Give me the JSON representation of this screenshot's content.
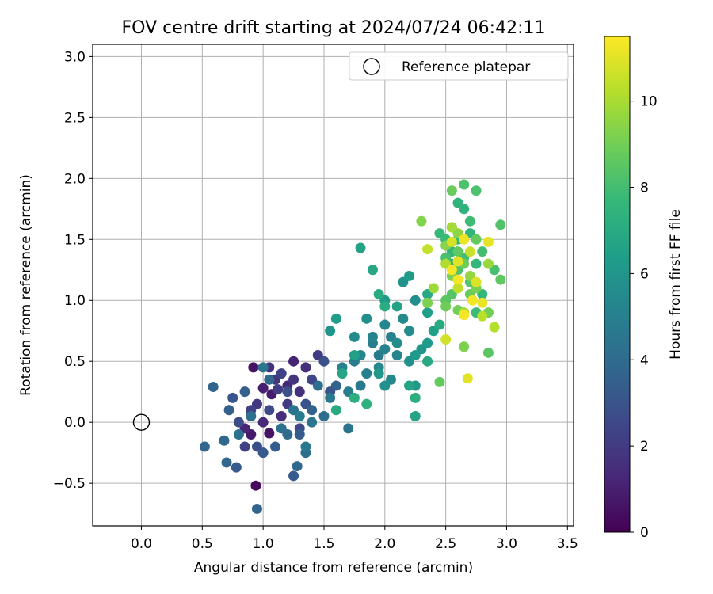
{
  "chart_data": {
    "type": "scatter",
    "title": "FOV centre drift starting at 2024/07/24 06:42:11",
    "xlabel": "Angular distance from reference (arcmin)",
    "ylabel": "Rotation from reference (arcmin)",
    "xlim": [
      -0.4,
      3.55
    ],
    "ylim": [
      -0.85,
      3.1
    ],
    "x_ticks": [
      0.0,
      0.5,
      1.0,
      1.5,
      2.0,
      2.5,
      3.0,
      3.5
    ],
    "x_tick_labels": [
      "0.0",
      "0.5",
      "1.0",
      "1.5",
      "2.0",
      "2.5",
      "3.0",
      "3.5"
    ],
    "y_ticks": [
      -0.5,
      0.0,
      0.5,
      1.0,
      1.5,
      2.0,
      2.5,
      3.0
    ],
    "y_tick_labels": [
      "−0.5",
      "0.0",
      "0.5",
      "1.0",
      "1.5",
      "2.0",
      "2.5",
      "3.0"
    ],
    "grid": true,
    "legend": {
      "placement": "top-right",
      "entries": [
        {
          "label": "Reference platepar",
          "marker": "open-circle"
        }
      ]
    },
    "reference_point": {
      "x": 0.0,
      "y": 0.0
    },
    "colorbar": {
      "label": "Hours from first FF file",
      "colormap": "viridis",
      "range": [
        0,
        11.5
      ],
      "ticks": [
        0,
        2,
        4,
        6,
        8,
        10
      ],
      "tick_labels": [
        "0",
        "2",
        "4",
        "6",
        "8",
        "10"
      ]
    },
    "colors": {
      "viridis": [
        "#440154",
        "#482878",
        "#3e4989",
        "#31688e",
        "#26828e",
        "#1f9e89",
        "#35b779",
        "#6ece58",
        "#b5de2b",
        "#fde725"
      ]
    },
    "points": [
      {
        "x": 0.94,
        "y": -0.52,
        "c": 0.3
      },
      {
        "x": 0.92,
        "y": 0.45,
        "c": 0.6
      },
      {
        "x": 1.05,
        "y": -0.09,
        "c": 0.6
      },
      {
        "x": 0.9,
        "y": -0.1,
        "c": 0.8
      },
      {
        "x": 1.0,
        "y": 0.28,
        "c": 1.0
      },
      {
        "x": 1.07,
        "y": 0.23,
        "c": 0.9
      },
      {
        "x": 0.85,
        "y": -0.05,
        "c": 1.2
      },
      {
        "x": 1.25,
        "y": 0.5,
        "c": 1.1
      },
      {
        "x": 1.2,
        "y": 0.3,
        "c": 1.3
      },
      {
        "x": 1.0,
        "y": 0.0,
        "c": 1.4
      },
      {
        "x": 1.15,
        "y": 0.05,
        "c": 1.5
      },
      {
        "x": 1.35,
        "y": 0.45,
        "c": 1.5
      },
      {
        "x": 1.05,
        "y": 0.45,
        "c": 1.7
      },
      {
        "x": 1.1,
        "y": 0.35,
        "c": 1.8
      },
      {
        "x": 1.25,
        "y": 0.35,
        "c": 1.8
      },
      {
        "x": 1.3,
        "y": 0.25,
        "c": 1.6
      },
      {
        "x": 0.95,
        "y": 0.15,
        "c": 1.9
      },
      {
        "x": 1.45,
        "y": 0.55,
        "c": 2.0
      },
      {
        "x": 1.2,
        "y": 0.15,
        "c": 2.0
      },
      {
        "x": 1.12,
        "y": 0.27,
        "c": 2.1
      },
      {
        "x": 0.9,
        "y": 0.1,
        "c": 2.2
      },
      {
        "x": 0.85,
        "y": -0.2,
        "c": 2.3
      },
      {
        "x": 1.15,
        "y": 0.4,
        "c": 2.3
      },
      {
        "x": 1.4,
        "y": 0.35,
        "c": 2.4
      },
      {
        "x": 1.3,
        "y": -0.05,
        "c": 2.5
      },
      {
        "x": 1.05,
        "y": 0.1,
        "c": 2.6
      },
      {
        "x": 0.8,
        "y": 0.0,
        "c": 2.7
      },
      {
        "x": 0.95,
        "y": -0.2,
        "c": 2.8
      },
      {
        "x": 1.2,
        "y": 0.25,
        "c": 2.8
      },
      {
        "x": 1.35,
        "y": 0.15,
        "c": 2.9
      },
      {
        "x": 1.5,
        "y": 0.5,
        "c": 2.9
      },
      {
        "x": 1.55,
        "y": 0.25,
        "c": 3.0
      },
      {
        "x": 0.75,
        "y": 0.2,
        "c": 3.1
      },
      {
        "x": 0.78,
        "y": -0.37,
        "c": 3.2
      },
      {
        "x": 1.0,
        "y": -0.25,
        "c": 3.2
      },
      {
        "x": 1.25,
        "y": -0.44,
        "c": 3.3
      },
      {
        "x": 1.3,
        "y": -0.1,
        "c": 3.4
      },
      {
        "x": 1.1,
        "y": -0.2,
        "c": 3.4
      },
      {
        "x": 0.72,
        "y": 0.1,
        "c": 3.5
      },
      {
        "x": 0.85,
        "y": 0.25,
        "c": 3.5
      },
      {
        "x": 1.4,
        "y": 0.1,
        "c": 3.6
      },
      {
        "x": 1.6,
        "y": 0.3,
        "c": 3.6
      },
      {
        "x": 0.95,
        "y": -0.71,
        "c": 3.7
      },
      {
        "x": 0.7,
        "y": -0.33,
        "c": 3.8
      },
      {
        "x": 0.52,
        "y": -0.2,
        "c": 3.8
      },
      {
        "x": 0.59,
        "y": 0.29,
        "c": 3.7
      },
      {
        "x": 0.68,
        "y": -0.15,
        "c": 3.9
      },
      {
        "x": 1.28,
        "y": -0.36,
        "c": 3.9
      },
      {
        "x": 1.05,
        "y": 0.35,
        "c": 4.0
      },
      {
        "x": 1.2,
        "y": -0.1,
        "c": 4.0
      },
      {
        "x": 1.35,
        "y": -0.25,
        "c": 4.1
      },
      {
        "x": 1.5,
        "y": 0.05,
        "c": 4.1
      },
      {
        "x": 1.45,
        "y": 0.3,
        "c": 4.2
      },
      {
        "x": 0.9,
        "y": 0.05,
        "c": 4.2
      },
      {
        "x": 0.8,
        "y": -0.1,
        "c": 4.3
      },
      {
        "x": 1.15,
        "y": -0.05,
        "c": 4.3
      },
      {
        "x": 1.7,
        "y": -0.05,
        "c": 4.4
      },
      {
        "x": 1.25,
        "y": 0.1,
        "c": 4.4
      },
      {
        "x": 1.0,
        "y": 0.45,
        "c": 4.5
      },
      {
        "x": 1.4,
        "y": 0.0,
        "c": 4.5
      },
      {
        "x": 1.35,
        "y": -0.2,
        "c": 4.6
      },
      {
        "x": 1.55,
        "y": 0.2,
        "c": 4.6
      },
      {
        "x": 1.8,
        "y": 0.3,
        "c": 4.7
      },
      {
        "x": 1.95,
        "y": 0.55,
        "c": 4.7
      },
      {
        "x": 1.3,
        "y": 0.05,
        "c": 4.8
      },
      {
        "x": 1.75,
        "y": 0.5,
        "c": 4.8
      },
      {
        "x": 1.9,
        "y": 0.65,
        "c": 4.9
      },
      {
        "x": 1.7,
        "y": 0.25,
        "c": 4.9
      },
      {
        "x": 2.05,
        "y": 0.7,
        "c": 5.0
      },
      {
        "x": 1.85,
        "y": 0.4,
        "c": 5.0
      },
      {
        "x": 2.0,
        "y": 0.6,
        "c": 5.1
      },
      {
        "x": 1.65,
        "y": 0.45,
        "c": 5.1
      },
      {
        "x": 1.9,
        "y": 0.7,
        "c": 5.2
      },
      {
        "x": 2.1,
        "y": 0.55,
        "c": 5.2
      },
      {
        "x": 1.8,
        "y": 0.55,
        "c": 5.3
      },
      {
        "x": 2.0,
        "y": 0.8,
        "c": 5.3
      },
      {
        "x": 1.95,
        "y": 0.45,
        "c": 5.4
      },
      {
        "x": 2.05,
        "y": 0.35,
        "c": 5.4
      },
      {
        "x": 1.75,
        "y": 0.7,
        "c": 5.5
      },
      {
        "x": 2.15,
        "y": 0.85,
        "c": 5.5
      },
      {
        "x": 2.1,
        "y": 0.65,
        "c": 5.6
      },
      {
        "x": 2.2,
        "y": 0.75,
        "c": 5.6
      },
      {
        "x": 1.85,
        "y": 0.85,
        "c": 5.7
      },
      {
        "x": 2.25,
        "y": 1.0,
        "c": 5.7
      },
      {
        "x": 2.0,
        "y": 0.3,
        "c": 5.8
      },
      {
        "x": 2.2,
        "y": 0.5,
        "c": 5.8
      },
      {
        "x": 2.15,
        "y": 1.15,
        "c": 5.9
      },
      {
        "x": 2.3,
        "y": 0.6,
        "c": 6.0
      },
      {
        "x": 1.55,
        "y": 0.75,
        "c": 6.0
      },
      {
        "x": 1.95,
        "y": 0.4,
        "c": 6.1
      },
      {
        "x": 2.25,
        "y": 0.3,
        "c": 6.1
      },
      {
        "x": 2.35,
        "y": 0.65,
        "c": 6.2
      },
      {
        "x": 2.25,
        "y": 0.55,
        "c": 6.2
      },
      {
        "x": 2.0,
        "y": 1.0,
        "c": 6.3
      },
      {
        "x": 2.2,
        "y": 1.2,
        "c": 6.3
      },
      {
        "x": 1.6,
        "y": 0.85,
        "c": 6.4
      },
      {
        "x": 2.35,
        "y": 0.9,
        "c": 6.4
      },
      {
        "x": 1.75,
        "y": 0.55,
        "c": 6.5
      },
      {
        "x": 2.4,
        "y": 0.75,
        "c": 6.5
      },
      {
        "x": 2.1,
        "y": 0.95,
        "c": 6.6
      },
      {
        "x": 1.8,
        "y": 1.43,
        "c": 6.6
      },
      {
        "x": 2.2,
        "y": 0.3,
        "c": 6.7
      },
      {
        "x": 2.25,
        "y": 0.05,
        "c": 6.7
      },
      {
        "x": 1.65,
        "y": 0.4,
        "c": 6.8
      },
      {
        "x": 1.9,
        "y": 1.25,
        "c": 6.8
      },
      {
        "x": 2.35,
        "y": 1.05,
        "c": 6.9
      },
      {
        "x": 2.35,
        "y": 0.5,
        "c": 6.9
      },
      {
        "x": 2.45,
        "y": 0.8,
        "c": 7.0
      },
      {
        "x": 1.6,
        "y": 0.1,
        "c": 7.0
      },
      {
        "x": 1.95,
        "y": 1.05,
        "c": 7.1
      },
      {
        "x": 2.0,
        "y": 0.95,
        "c": 7.1
      },
      {
        "x": 2.25,
        "y": 0.2,
        "c": 7.2
      },
      {
        "x": 1.75,
        "y": 0.2,
        "c": 7.2
      },
      {
        "x": 2.55,
        "y": 1.3,
        "c": 7.3
      },
      {
        "x": 1.85,
        "y": 0.15,
        "c": 7.3
      },
      {
        "x": 2.6,
        "y": 1.8,
        "c": 7.4
      },
      {
        "x": 2.65,
        "y": 1.75,
        "c": 7.4
      },
      {
        "x": 2.55,
        "y": 1.4,
        "c": 7.5
      },
      {
        "x": 2.7,
        "y": 1.55,
        "c": 7.5
      },
      {
        "x": 2.75,
        "y": 1.3,
        "c": 7.6
      },
      {
        "x": 2.8,
        "y": 1.05,
        "c": 7.6
      },
      {
        "x": 2.45,
        "y": 1.55,
        "c": 7.7
      },
      {
        "x": 2.6,
        "y": 1.5,
        "c": 7.7
      },
      {
        "x": 2.75,
        "y": 0.9,
        "c": 7.8
      },
      {
        "x": 2.5,
        "y": 1.5,
        "c": 7.8
      },
      {
        "x": 2.7,
        "y": 1.65,
        "c": 7.9
      },
      {
        "x": 2.55,
        "y": 1.6,
        "c": 7.9
      },
      {
        "x": 2.65,
        "y": 1.35,
        "c": 8.0
      },
      {
        "x": 2.8,
        "y": 1.4,
        "c": 8.0
      },
      {
        "x": 2.5,
        "y": 1.35,
        "c": 8.1
      },
      {
        "x": 2.9,
        "y": 1.25,
        "c": 8.1
      },
      {
        "x": 2.65,
        "y": 1.95,
        "c": 8.2
      },
      {
        "x": 2.75,
        "y": 1.9,
        "c": 8.2
      },
      {
        "x": 2.6,
        "y": 1.25,
        "c": 8.3
      },
      {
        "x": 2.95,
        "y": 1.62,
        "c": 8.3
      },
      {
        "x": 2.55,
        "y": 1.05,
        "c": 8.4
      },
      {
        "x": 2.7,
        "y": 1.15,
        "c": 8.4
      },
      {
        "x": 2.85,
        "y": 0.57,
        "c": 8.5
      },
      {
        "x": 2.5,
        "y": 1.0,
        "c": 8.5
      },
      {
        "x": 2.95,
        "y": 1.17,
        "c": 8.6
      },
      {
        "x": 2.6,
        "y": 1.4,
        "c": 8.6
      },
      {
        "x": 2.75,
        "y": 1.5,
        "c": 8.7
      },
      {
        "x": 2.45,
        "y": 0.33,
        "c": 8.7
      },
      {
        "x": 2.55,
        "y": 1.9,
        "c": 8.8
      },
      {
        "x": 2.7,
        "y": 1.05,
        "c": 8.8
      },
      {
        "x": 2.5,
        "y": 0.95,
        "c": 8.9
      },
      {
        "x": 2.65,
        "y": 1.3,
        "c": 8.9
      },
      {
        "x": 2.85,
        "y": 0.9,
        "c": 9.0
      },
      {
        "x": 2.6,
        "y": 0.92,
        "c": 9.0
      },
      {
        "x": 2.75,
        "y": 1.1,
        "c": 9.1
      },
      {
        "x": 2.55,
        "y": 1.2,
        "c": 9.1
      },
      {
        "x": 2.35,
        "y": 0.98,
        "c": 9.2
      },
      {
        "x": 2.65,
        "y": 0.62,
        "c": 9.2
      },
      {
        "x": 2.3,
        "y": 1.65,
        "c": 9.3
      },
      {
        "x": 2.5,
        "y": 1.45,
        "c": 9.4
      },
      {
        "x": 2.6,
        "y": 1.55,
        "c": 9.5
      },
      {
        "x": 2.7,
        "y": 1.2,
        "c": 9.6
      },
      {
        "x": 2.85,
        "y": 1.3,
        "c": 9.7
      },
      {
        "x": 2.4,
        "y": 1.1,
        "c": 9.8
      },
      {
        "x": 2.55,
        "y": 1.6,
        "c": 9.9
      },
      {
        "x": 2.65,
        "y": 0.9,
        "c": 10.0
      },
      {
        "x": 2.5,
        "y": 1.3,
        "c": 10.1
      },
      {
        "x": 2.9,
        "y": 0.78,
        "c": 10.2
      },
      {
        "x": 2.8,
        "y": 0.87,
        "c": 10.3
      },
      {
        "x": 2.6,
        "y": 1.1,
        "c": 10.4
      },
      {
        "x": 2.35,
        "y": 1.42,
        "c": 10.5
      },
      {
        "x": 2.7,
        "y": 1.4,
        "c": 10.6
      },
      {
        "x": 2.5,
        "y": 0.68,
        "c": 10.7
      },
      {
        "x": 2.55,
        "y": 1.48,
        "c": 10.8
      },
      {
        "x": 2.75,
        "y": 1.15,
        "c": 10.9
      },
      {
        "x": 2.68,
        "y": 0.36,
        "c": 11.0
      },
      {
        "x": 2.6,
        "y": 1.32,
        "c": 11.0
      },
      {
        "x": 2.85,
        "y": 1.48,
        "c": 11.1
      },
      {
        "x": 2.8,
        "y": 0.98,
        "c": 11.2
      },
      {
        "x": 2.65,
        "y": 1.5,
        "c": 11.2
      },
      {
        "x": 2.6,
        "y": 1.17,
        "c": 11.3
      },
      {
        "x": 2.72,
        "y": 1.0,
        "c": 11.3
      },
      {
        "x": 2.65,
        "y": 0.88,
        "c": 11.4
      },
      {
        "x": 2.55,
        "y": 1.25,
        "c": 11.4
      }
    ]
  }
}
